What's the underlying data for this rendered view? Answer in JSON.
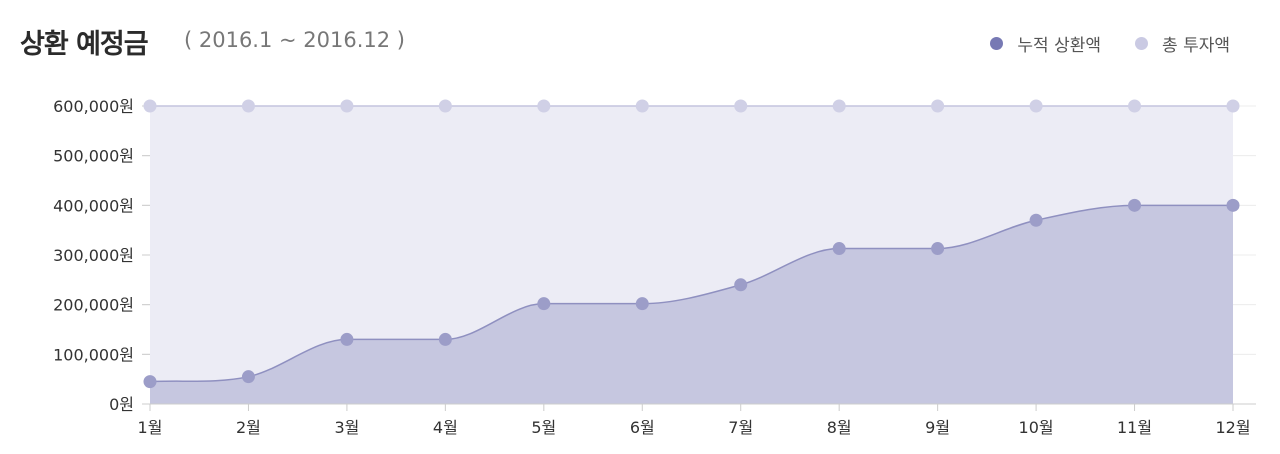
{
  "header": {
    "title": "상환 예정금",
    "subtitle": "( 2016.1 ~ 2016.12 )"
  },
  "colors": {
    "repaid_point": "#9c9dc8",
    "repaid_fill": "#c6c7e0",
    "repaid_line": "#8f90c0",
    "invest_point": "#d0d0e6",
    "invest_fill": "#ececf5",
    "invest_line": "#c3c3de",
    "legend_repaid": "#7779b4",
    "legend_invest": "#cacae3"
  },
  "chart_data": {
    "type": "area",
    "categories": [
      "1월",
      "2월",
      "3월",
      "4월",
      "5월",
      "6월",
      "7월",
      "8월",
      "9월",
      "10월",
      "11월",
      "12월"
    ],
    "series": [
      {
        "name": "누적 상환액",
        "values": [
          45000,
          55000,
          130000,
          130000,
          202000,
          202000,
          240000,
          313000,
          313000,
          370000,
          400000,
          400000
        ]
      },
      {
        "name": "총 투자액",
        "values": [
          600000,
          600000,
          600000,
          600000,
          600000,
          600000,
          600000,
          600000,
          600000,
          600000,
          600000,
          600000
        ]
      }
    ],
    "yticks": [
      "0원",
      "100,000원",
      "200,000원",
      "300,000원",
      "400,000원",
      "500,000원",
      "600,000원"
    ],
    "ylim": [
      0,
      600000
    ],
    "legend": "top-right",
    "grid": true
  }
}
